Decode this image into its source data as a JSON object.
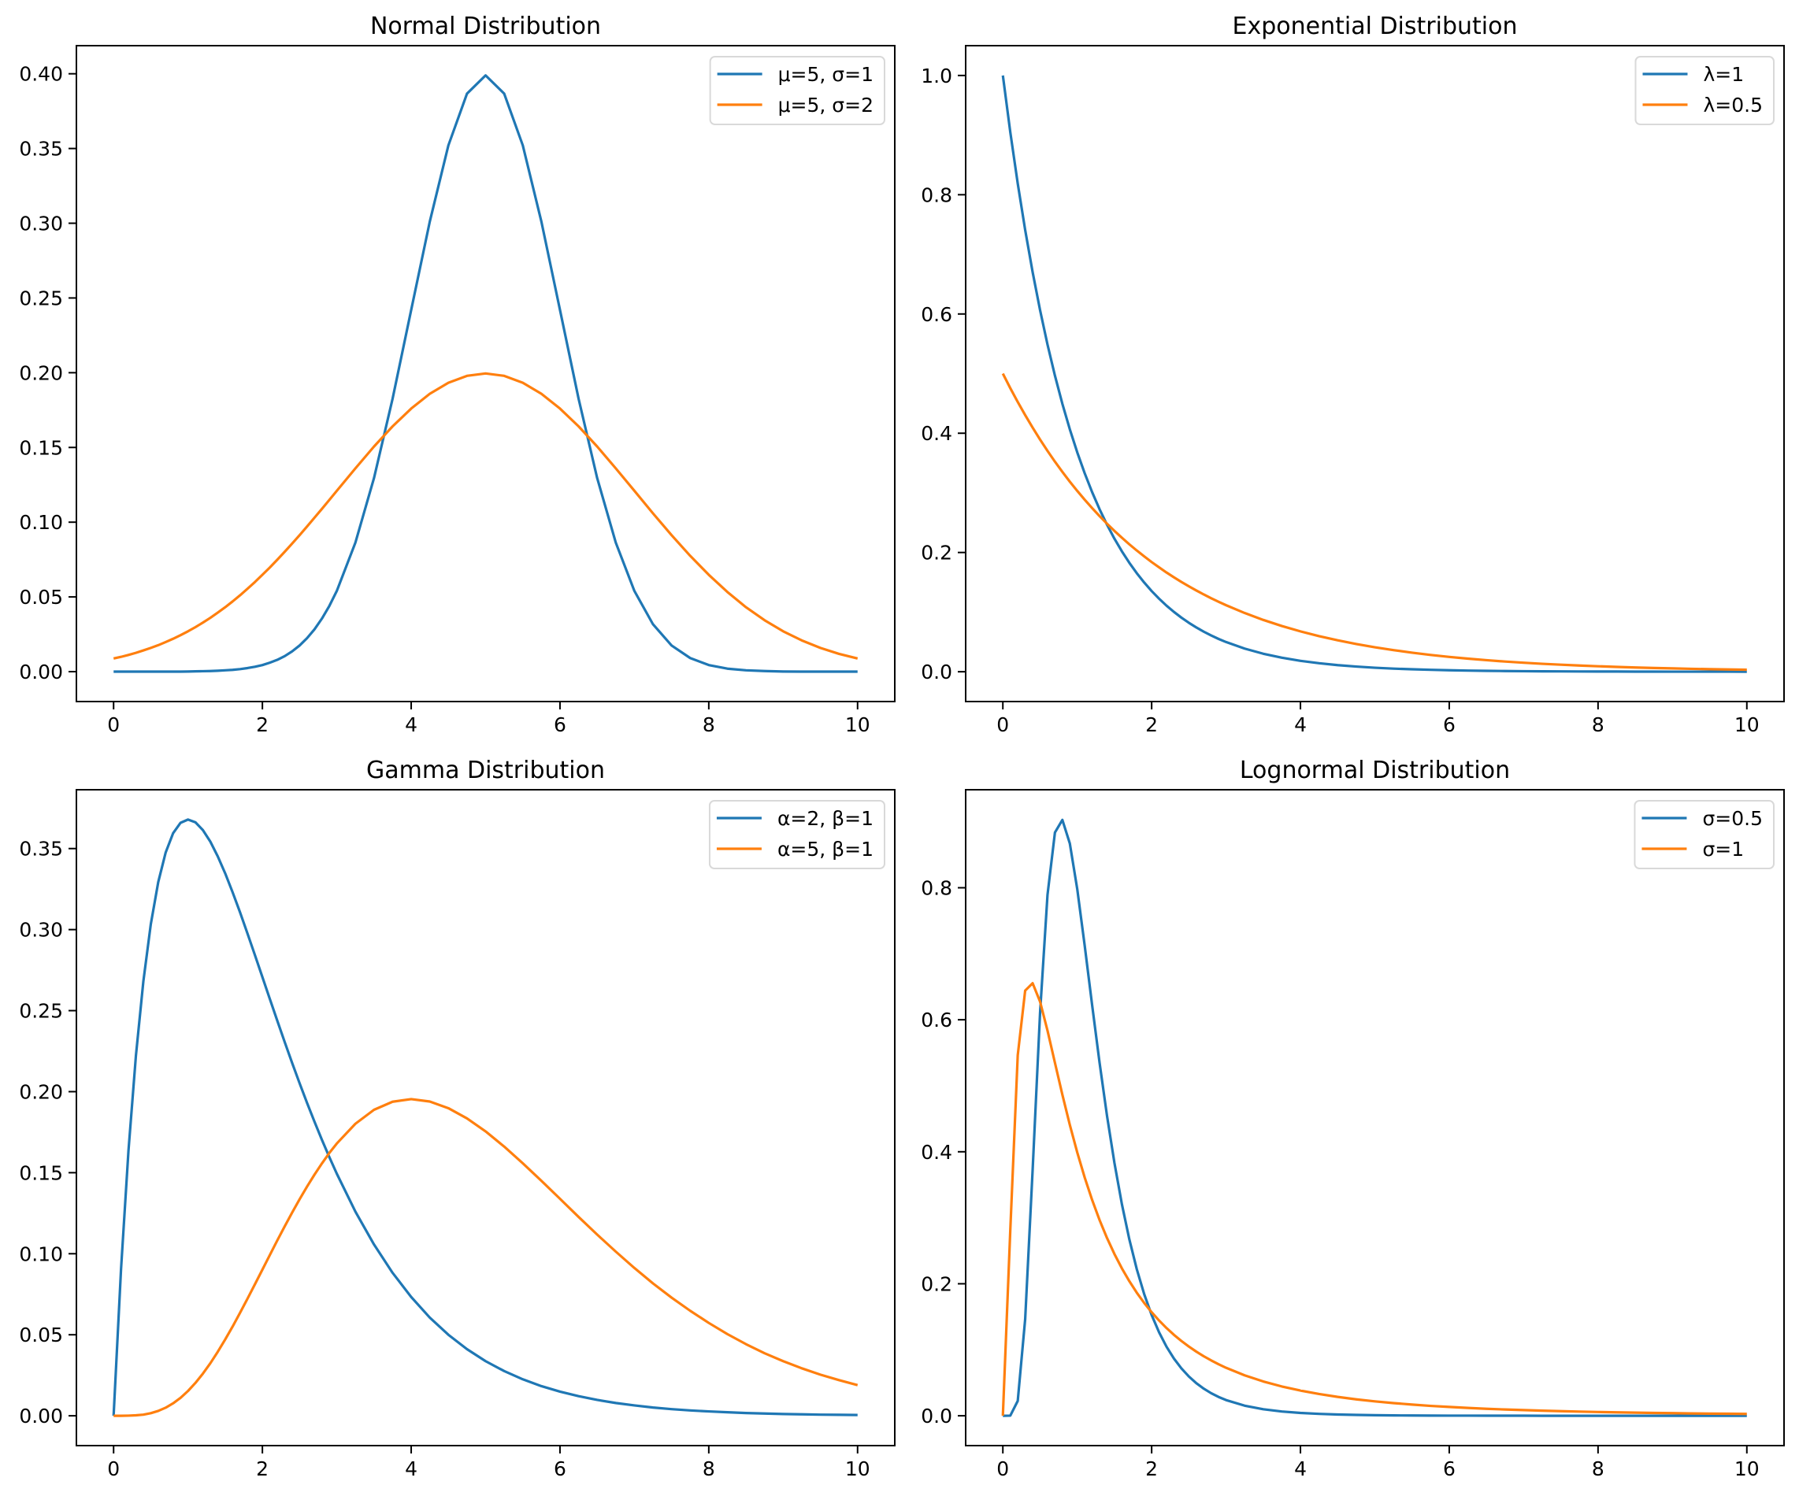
{
  "chart_data": [
    {
      "type": "line",
      "title": "Normal Distribution",
      "xlabel": "",
      "ylabel": "",
      "xlim": [
        -0.5,
        10.5
      ],
      "ylim": [
        -0.02,
        0.4188
      ],
      "xticks": [
        0,
        2,
        4,
        6,
        8,
        10
      ],
      "xtick_labels": [
        "0",
        "2",
        "4",
        "6",
        "8",
        "10"
      ],
      "yticks": [
        0.0,
        0.05,
        0.1,
        0.15,
        0.2,
        0.25,
        0.3,
        0.35,
        0.4
      ],
      "ytick_labels": [
        "0.00",
        "0.05",
        "0.10",
        "0.15",
        "0.20",
        "0.25",
        "0.30",
        "0.35",
        "0.40"
      ],
      "grid": false,
      "legend_position": "top-right",
      "x_ref": "x",
      "series": [
        {
          "name": "μ=5, σ=1",
          "color": "#1f77b4",
          "values": [
            0.0,
            0.0,
            0.0,
            0.0,
            0.0,
            0.0,
            0.0,
            0.0,
            0.0,
            0.0,
            0.0001,
            0.0002,
            0.0003,
            0.0004,
            0.0006,
            0.0009,
            0.0012,
            0.0017,
            0.0024,
            0.0033,
            0.0044,
            0.006,
            0.0079,
            0.0104,
            0.0136,
            0.0175,
            0.0224,
            0.0283,
            0.0355,
            0.044,
            0.054,
            0.0863,
            0.1295,
            0.1826,
            0.242,
            0.3011,
            0.3521,
            0.3867,
            0.3989,
            0.3867,
            0.3521,
            0.3011,
            0.242,
            0.1826,
            0.1295,
            0.0863,
            0.054,
            0.0317,
            0.0175,
            0.0091,
            0.0044,
            0.002,
            0.0009,
            0.0004,
            0.0001,
            0.0,
            0.0,
            0.0,
            0.0
          ]
        },
        {
          "name": "μ=5, σ=2",
          "color": "#ff7f0e",
          "values": [
            0.0088,
            0.0099,
            0.0112,
            0.0126,
            0.0142,
            0.0159,
            0.0177,
            0.0198,
            0.022,
            0.0244,
            0.027,
            0.0298,
            0.0328,
            0.036,
            0.0395,
            0.0431,
            0.047,
            0.0511,
            0.0555,
            0.06,
            0.0648,
            0.0697,
            0.0749,
            0.0802,
            0.0857,
            0.0913,
            0.0971,
            0.103,
            0.1089,
            0.1149,
            0.121,
            0.136,
            0.1506,
            0.1641,
            0.176,
            0.1859,
            0.1933,
            0.1979,
            0.1995,
            0.1979,
            0.1933,
            0.1859,
            0.176,
            0.1641,
            0.1506,
            0.136,
            0.121,
            0.1059,
            0.0913,
            0.0775,
            0.0648,
            0.0533,
            0.0431,
            0.0344,
            0.027,
            0.0209,
            0.0159,
            0.0119,
            0.0088
          ]
        }
      ]
    },
    {
      "type": "line",
      "title": "Exponential Distribution",
      "xlabel": "",
      "ylabel": "",
      "xlim": [
        -0.5,
        10.5
      ],
      "ylim": [
        -0.05,
        1.05
      ],
      "xticks": [
        0,
        2,
        4,
        6,
        8,
        10
      ],
      "xtick_labels": [
        "0",
        "2",
        "4",
        "6",
        "8",
        "10"
      ],
      "yticks": [
        0.0,
        0.2,
        0.4,
        0.6,
        0.8,
        1.0
      ],
      "ytick_labels": [
        "0.0",
        "0.2",
        "0.4",
        "0.6",
        "0.8",
        "1.0"
      ],
      "grid": false,
      "legend_position": "top-right",
      "x_ref": "x",
      "series": [
        {
          "name": "λ=1",
          "color": "#1f77b4",
          "values": [
            1.0,
            0.9048,
            0.8187,
            0.7408,
            0.6703,
            0.6065,
            0.5488,
            0.4966,
            0.4493,
            0.4066,
            0.3679,
            0.3329,
            0.3012,
            0.2725,
            0.2466,
            0.2231,
            0.2019,
            0.1827,
            0.1653,
            0.1496,
            0.1353,
            0.1225,
            0.1108,
            0.1003,
            0.0907,
            0.0821,
            0.0743,
            0.0672,
            0.0608,
            0.055,
            0.0498,
            0.0388,
            0.0302,
            0.0235,
            0.0183,
            0.0143,
            0.0111,
            0.0087,
            0.0067,
            0.0052,
            0.0041,
            0.0032,
            0.0025,
            0.0019,
            0.0015,
            0.0012,
            0.0009,
            0.0007,
            0.0006,
            0.0004,
            0.0003,
            0.0003,
            0.0002,
            0.0002,
            0.0001,
            0.0001,
            0.0001,
            0.0001,
            0.0
          ]
        },
        {
          "name": "λ=0.5",
          "color": "#ff7f0e",
          "values": [
            0.5,
            0.4756,
            0.4524,
            0.4304,
            0.4094,
            0.3894,
            0.3704,
            0.3523,
            0.3352,
            0.3188,
            0.3033,
            0.2885,
            0.2744,
            0.261,
            0.2483,
            0.2362,
            0.2247,
            0.2137,
            0.2033,
            0.1934,
            0.1839,
            0.175,
            0.1664,
            0.1583,
            0.1506,
            0.1433,
            0.1363,
            0.1296,
            0.1233,
            0.1173,
            0.1116,
            0.0985,
            0.0869,
            0.0767,
            0.0677,
            0.0597,
            0.0527,
            0.0465,
            0.041,
            0.0362,
            0.032,
            0.0282,
            0.0249,
            0.022,
            0.0194,
            0.0171,
            0.0151,
            0.0133,
            0.0118,
            0.0104,
            0.0092,
            0.0081,
            0.0071,
            0.0063,
            0.0056,
            0.0049,
            0.0043,
            0.0038,
            0.0034
          ]
        }
      ]
    },
    {
      "type": "line",
      "title": "Gamma Distribution",
      "xlabel": "",
      "ylabel": "",
      "xlim": [
        -0.5,
        10.5
      ],
      "ylim": [
        -0.0184,
        0.3863
      ],
      "xticks": [
        0,
        2,
        4,
        6,
        8,
        10
      ],
      "xtick_labels": [
        "0",
        "2",
        "4",
        "6",
        "8",
        "10"
      ],
      "yticks": [
        0.0,
        0.05,
        0.1,
        0.15,
        0.2,
        0.25,
        0.3,
        0.35
      ],
      "ytick_labels": [
        "0.00",
        "0.05",
        "0.10",
        "0.15",
        "0.20",
        "0.25",
        "0.30",
        "0.35"
      ],
      "grid": false,
      "legend_position": "top-right",
      "x_ref": "x",
      "series": [
        {
          "name": "α=2, β=1",
          "color": "#1f77b4",
          "values": [
            0.0,
            0.0905,
            0.1637,
            0.2222,
            0.2681,
            0.3033,
            0.3293,
            0.3476,
            0.3595,
            0.3659,
            0.3679,
            0.3662,
            0.3614,
            0.3543,
            0.3452,
            0.3347,
            0.323,
            0.3106,
            0.2975,
            0.2842,
            0.2707,
            0.2572,
            0.2438,
            0.2306,
            0.2177,
            0.2052,
            0.1931,
            0.1815,
            0.1703,
            0.1596,
            0.1494,
            0.126,
            0.1057,
            0.0882,
            0.0733,
            0.0606,
            0.05,
            0.0411,
            0.0337,
            0.0276,
            0.0225,
            0.0183,
            0.0149,
            0.0121,
            0.0098,
            0.0079,
            0.0064,
            0.0051,
            0.0041,
            0.0033,
            0.0027,
            0.0022,
            0.0017,
            0.0014,
            0.0011,
            0.0009,
            0.0007,
            0.0006,
            0.0005
          ]
        },
        {
          "name": "α=5, β=1",
          "color": "#ff7f0e",
          "values": [
            0.0,
            0.0,
            0.0001,
            0.0003,
            0.0007,
            0.0016,
            0.003,
            0.005,
            0.0077,
            0.0111,
            0.0153,
            0.0203,
            0.026,
            0.0324,
            0.0395,
            0.0471,
            0.0551,
            0.0636,
            0.0723,
            0.0812,
            0.0902,
            0.0992,
            0.1082,
            0.1169,
            0.1254,
            0.1336,
            0.1414,
            0.1488,
            0.1557,
            0.1622,
            0.168,
            0.1802,
            0.1888,
            0.1938,
            0.1954,
            0.1939,
            0.1898,
            0.1835,
            0.1755,
            0.1661,
            0.1558,
            0.145,
            0.1339,
            0.1227,
            0.1118,
            0.1013,
            0.0912,
            0.0817,
            0.0729,
            0.0648,
            0.0573,
            0.0504,
            0.0442,
            0.0386,
            0.0337,
            0.0293,
            0.0254,
            0.022,
            0.0189
          ]
        }
      ]
    },
    {
      "type": "line",
      "title": "Lognormal Distribution",
      "xlabel": "",
      "ylabel": "",
      "xlim": [
        -0.5,
        10.5
      ],
      "ylim": [
        -0.0452,
        0.9485
      ],
      "xticks": [
        0,
        2,
        4,
        6,
        8,
        10
      ],
      "xtick_labels": [
        "0",
        "2",
        "4",
        "6",
        "8",
        "10"
      ],
      "yticks": [
        0.0,
        0.2,
        0.4,
        0.6,
        0.8
      ],
      "ytick_labels": [
        "0.0",
        "0.2",
        "0.4",
        "0.6",
        "0.8"
      ],
      "grid": false,
      "legend_position": "top-right",
      "x_ref": "x",
      "series": [
        {
          "name": "σ=0.5",
          "color": "#1f77b4",
          "values": [
            0.0,
            0.0002,
            0.0225,
            0.1465,
            0.3721,
            0.6104,
            0.7891,
            0.8837,
            0.9028,
            0.8671,
            0.7979,
            0.7123,
            0.6221,
            0.5348,
            0.4544,
            0.3829,
            0.3206,
            0.2673,
            0.2221,
            0.1842,
            0.1526,
            0.1264,
            0.1046,
            0.0866,
            0.0718,
            0.0595,
            0.0494,
            0.0411,
            0.0342,
            0.0285,
            0.0238,
            0.0153,
            0.0099,
            0.0065,
            0.0043,
            0.0029,
            0.0019,
            0.0013,
            0.0009,
            0.0006,
            0.0004,
            0.0003,
            0.0002,
            0.0002,
            0.0001,
            0.0001,
            0.0001,
            0.0,
            0.0,
            0.0,
            0.0,
            0.0,
            0.0,
            0.0,
            0.0,
            0.0,
            0.0,
            0.0,
            0.0
          ]
        },
        {
          "name": "σ=1",
          "color": "#ff7f0e",
          "values": [
            0.0,
            0.2815,
            0.5462,
            0.6442,
            0.6554,
            0.6275,
            0.5836,
            0.5348,
            0.4864,
            0.4408,
            0.3989,
            0.361,
            0.327,
            0.2965,
            0.2693,
            0.245,
            0.2233,
            0.2039,
            0.1865,
            0.1709,
            0.1569,
            0.1443,
            0.1329,
            0.1226,
            0.1133,
            0.1049,
            0.0972,
            0.0902,
            0.0839,
            0.078,
            0.0727,
            0.0613,
            0.052,
            0.0444,
            0.0382,
            0.033,
            0.0286,
            0.0249,
            0.0218,
            0.0192,
            0.017,
            0.015,
            0.0134,
            0.0119,
            0.0106,
            0.0095,
            0.0086,
            0.0077,
            0.007,
            0.0063,
            0.0057,
            0.0052,
            0.0048,
            0.0043,
            0.004,
            0.0036,
            0.0033,
            0.0031,
            0.0028
          ]
        }
      ]
    }
  ],
  "x": [
    0,
    0.1,
    0.2,
    0.3,
    0.4,
    0.5,
    0.6,
    0.7,
    0.8,
    0.9,
    1.0,
    1.1,
    1.2,
    1.3,
    1.4,
    1.5,
    1.6,
    1.7,
    1.8,
    1.9,
    2.0,
    2.1,
    2.2,
    2.3,
    2.4,
    2.5,
    2.6,
    2.7,
    2.8,
    2.9,
    3.0,
    3.25,
    3.5,
    3.75,
    4.0,
    4.25,
    4.5,
    4.75,
    5.0,
    5.25,
    5.5,
    5.75,
    6.0,
    6.25,
    6.5,
    6.75,
    7.0,
    7.25,
    7.5,
    7.75,
    8.0,
    8.25,
    8.5,
    8.75,
    9.0,
    9.25,
    9.5,
    9.75,
    10.0
  ]
}
